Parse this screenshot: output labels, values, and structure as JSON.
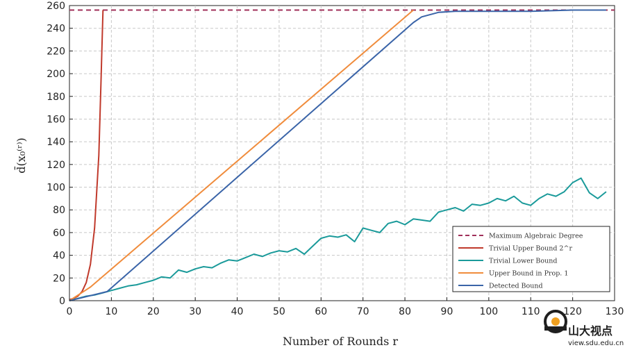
{
  "chart_data": {
    "type": "line",
    "xlabel": "Number of Rounds r",
    "ylabel": "d̄(x₀⁽ʳ⁾)",
    "xlim": [
      0,
      130
    ],
    "ylim": [
      0,
      260
    ],
    "xticks": [
      0,
      10,
      20,
      30,
      40,
      50,
      60,
      70,
      80,
      90,
      100,
      110,
      120,
      130
    ],
    "yticks": [
      0,
      20,
      40,
      60,
      80,
      100,
      120,
      140,
      160,
      180,
      200,
      220,
      240,
      260
    ],
    "grid": true,
    "legend_position": "lower-right",
    "series": [
      {
        "name": "Maximum Algebraic Degree",
        "color": "#a0305a",
        "style": "dashed",
        "x": [
          0,
          130
        ],
        "y": [
          256,
          256
        ]
      },
      {
        "name": "Trivial Upper Bound 2^r",
        "color": "#c0392b",
        "style": "solid",
        "x": [
          0,
          1,
          2,
          3,
          4,
          5,
          6,
          7,
          7.5,
          8
        ],
        "y": [
          1,
          2,
          4,
          8,
          16,
          32,
          64,
          128,
          190,
          256
        ]
      },
      {
        "name": "Trivial Lower Bound",
        "color": "#1a9a9a",
        "style": "solid",
        "x": [
          0,
          2,
          4,
          6,
          8,
          10,
          12,
          14,
          16,
          18,
          20,
          22,
          24,
          26,
          28,
          30,
          32,
          34,
          36,
          38,
          40,
          42,
          44,
          46,
          48,
          50,
          52,
          54,
          56,
          58,
          60,
          62,
          64,
          66,
          68,
          70,
          72,
          74,
          76,
          78,
          80,
          82,
          84,
          86,
          88,
          90,
          92,
          94,
          96,
          98,
          100,
          102,
          104,
          106,
          108,
          110,
          112,
          114,
          116,
          118,
          120,
          122,
          124,
          126,
          128
        ],
        "y": [
          0,
          2,
          4,
          5,
          7,
          9,
          11,
          13,
          14,
          16,
          18,
          21,
          20,
          27,
          25,
          28,
          30,
          29,
          33,
          36,
          35,
          38,
          41,
          39,
          42,
          44,
          43,
          46,
          41,
          48,
          55,
          57,
          56,
          58,
          52,
          64,
          62,
          60,
          68,
          70,
          67,
          72,
          71,
          70,
          78,
          80,
          82,
          79,
          85,
          84,
          86,
          90,
          88,
          92,
          86,
          84,
          90,
          94,
          92,
          96,
          104,
          108,
          95,
          90,
          96
        ]
      },
      {
        "name": "Upper Bound in Prop. 1",
        "color": "#f08c3c",
        "style": "solid",
        "x": [
          0,
          5,
          82
        ],
        "y": [
          0,
          12,
          256
        ]
      },
      {
        "name": "Detected Bound",
        "color": "#3a64a8",
        "style": "solid",
        "x": [
          0,
          9,
          82,
          84,
          88,
          92,
          100,
          110,
          120,
          128
        ],
        "y": [
          0,
          8,
          245,
          250,
          254,
          255,
          255,
          255,
          256,
          256
        ]
      }
    ]
  },
  "watermark": {
    "name": "山大视点",
    "url": "view.sdu.edu.cn"
  }
}
